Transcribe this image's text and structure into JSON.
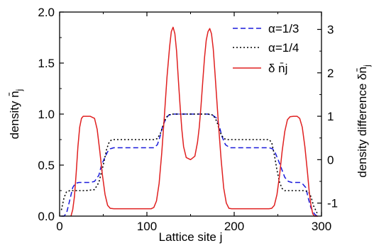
{
  "chart_data": {
    "type": "line",
    "title": "",
    "xlabel": "Lattice site j",
    "ylabel_left": "density n̄",
    "ylabel_left_sub": "j",
    "ylabel_right": "density difference δn̄",
    "ylabel_right_sub": "j",
    "xlim": [
      0,
      300
    ],
    "ylim_left": [
      0.0,
      2.0
    ],
    "ylim_right": [
      -1.3,
      3.4
    ],
    "x_ticks": [
      "0",
      "100",
      "200",
      "300"
    ],
    "x_tick_values": [
      0,
      100,
      200,
      300
    ],
    "y_left_ticks": [
      "0.0",
      "0.5",
      "1.0",
      "1.5",
      "2.0"
    ],
    "y_left_tick_values": [
      0.0,
      0.5,
      1.0,
      1.5,
      2.0
    ],
    "y_right_ticks": [
      "-1",
      "0",
      "1",
      "2",
      "3"
    ],
    "y_right_tick_values": [
      -1,
      0,
      1,
      2,
      3
    ],
    "legend_position": "top-right",
    "series": [
      {
        "name": "α=1/3",
        "axis": "left",
        "style": "dashed",
        "color": "#1a1adb",
        "x": [
          2,
          5,
          8,
          12,
          15,
          18,
          22,
          25,
          30,
          35,
          40,
          45,
          48,
          52,
          55,
          58,
          62,
          70,
          80,
          90,
          100,
          108,
          112,
          115,
          118,
          122,
          125,
          130,
          140,
          150,
          160,
          170,
          175,
          180,
          183,
          186,
          190,
          195,
          200,
          210,
          220,
          230,
          240,
          244,
          247,
          250,
          254,
          258,
          262,
          266,
          270,
          275,
          278,
          282,
          285,
          288,
          292,
          295
        ],
        "y": [
          0.0,
          0.0,
          0.03,
          0.17,
          0.28,
          0.32,
          0.33,
          0.33,
          0.33,
          0.33,
          0.34,
          0.4,
          0.5,
          0.58,
          0.63,
          0.66,
          0.67,
          0.67,
          0.67,
          0.67,
          0.67,
          0.67,
          0.7,
          0.78,
          0.88,
          0.96,
          0.99,
          1.0,
          1.0,
          1.0,
          1.0,
          1.0,
          0.99,
          0.96,
          0.88,
          0.78,
          0.7,
          0.67,
          0.67,
          0.67,
          0.67,
          0.67,
          0.67,
          0.66,
          0.62,
          0.56,
          0.47,
          0.38,
          0.34,
          0.33,
          0.33,
          0.33,
          0.32,
          0.28,
          0.17,
          0.08,
          0.02,
          0.0
        ]
      },
      {
        "name": "α=1/4",
        "axis": "left",
        "style": "dotted",
        "color": "#000000",
        "x": [
          2,
          5,
          8,
          12,
          20,
          30,
          40,
          45,
          50,
          54,
          57,
          60,
          65,
          80,
          100,
          108,
          112,
          116,
          120,
          124,
          130,
          150,
          170,
          176,
          180,
          184,
          188,
          192,
          200,
          220,
          240,
          243,
          246,
          249,
          252,
          255,
          258,
          262,
          270,
          280,
          285,
          288,
          291,
          295
        ],
        "y": [
          0.06,
          0.18,
          0.24,
          0.25,
          0.25,
          0.25,
          0.26,
          0.33,
          0.5,
          0.66,
          0.73,
          0.75,
          0.75,
          0.75,
          0.75,
          0.75,
          0.76,
          0.82,
          0.93,
          0.99,
          1.0,
          1.0,
          1.0,
          0.99,
          0.93,
          0.82,
          0.76,
          0.75,
          0.75,
          0.75,
          0.75,
          0.72,
          0.6,
          0.45,
          0.33,
          0.27,
          0.25,
          0.25,
          0.25,
          0.25,
          0.24,
          0.19,
          0.1,
          0.03
        ]
      },
      {
        "name": "δ n̄j",
        "axis": "right",
        "style": "solid",
        "color": "#e02020",
        "x": [
          13,
          15,
          17,
          19,
          21,
          23,
          25,
          27,
          30,
          35,
          40,
          43,
          46,
          49,
          52,
          55,
          58,
          62,
          70,
          80,
          90,
          100,
          105,
          108,
          111,
          114,
          117,
          120,
          123,
          126,
          128,
          130,
          132,
          134,
          136,
          138,
          140,
          142,
          145,
          150,
          155,
          158,
          160,
          162,
          164,
          166,
          168,
          170,
          172,
          174,
          176,
          178,
          180,
          182,
          185,
          188,
          191,
          194,
          197,
          200,
          210,
          220,
          230,
          240,
          243,
          246,
          249,
          252,
          255,
          258,
          261,
          264,
          268,
          272,
          275,
          278,
          281,
          284,
          286,
          288,
          290,
          292,
          294,
          296
        ],
        "y": [
          -1.3,
          -1.15,
          -0.85,
          -0.3,
          0.3,
          0.75,
          0.95,
          1.0,
          1.0,
          1.0,
          0.95,
          0.7,
          0.2,
          -0.35,
          -0.8,
          -1.05,
          -1.12,
          -1.13,
          -1.13,
          -1.13,
          -1.13,
          -1.13,
          -1.13,
          -1.1,
          -0.95,
          -0.55,
          0.15,
          1.0,
          1.9,
          2.6,
          2.95,
          3.05,
          2.9,
          2.5,
          1.85,
          1.25,
          0.7,
          0.3,
          0.05,
          0.0,
          0.08,
          0.4,
          0.75,
          1.25,
          1.8,
          2.35,
          2.75,
          2.95,
          3.02,
          2.9,
          2.55,
          2.0,
          1.4,
          0.8,
          0.0,
          -0.65,
          -1.0,
          -1.12,
          -1.13,
          -1.13,
          -1.13,
          -1.13,
          -1.13,
          -1.13,
          -1.12,
          -1.05,
          -0.8,
          -0.35,
          0.2,
          0.65,
          0.92,
          0.99,
          1.0,
          1.0,
          0.95,
          0.75,
          0.3,
          -0.3,
          -0.75,
          -1.05,
          -1.25,
          -1.3,
          -1.3,
          -1.3
        ]
      }
    ]
  }
}
